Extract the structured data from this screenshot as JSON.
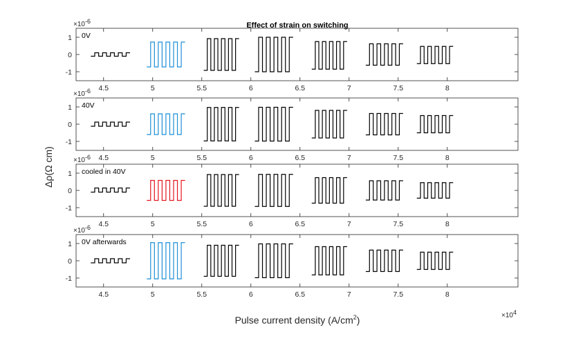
{
  "chart_data": {
    "type": "line",
    "title": "Effect of strain on switching",
    "xlabel": "Pulse current density (A/cm",
    "xlabel_sup": "2",
    "xlabel_close": ")",
    "ylabel": "Δρ(Ω cm)",
    "x_multiplier": "×10",
    "x_multiplier_exp": "4",
    "y_multiplier": "×10",
    "y_multiplier_exp": "-6",
    "xlim": [
      4.22,
      8.72
    ],
    "ylim": [
      -1.2,
      1.2
    ],
    "x_ticks": [
      "4.5",
      "5",
      "5.5",
      "6",
      "6.5",
      "7",
      "7.5",
      "8"
    ],
    "x_tick_values": [
      4.5,
      5.0,
      5.5,
      6.0,
      6.5,
      7.0,
      7.5,
      8.0
    ],
    "y_ticks": [
      "-1",
      "0",
      "1"
    ],
    "y_tick_values": [
      -1,
      0,
      1
    ],
    "colors": {
      "black": "#000000",
      "blue": "#1b8fd6",
      "red": "#e6141e",
      "axis": "#262626"
    },
    "panels": [
      {
        "label": "0V",
        "segments": [
          {
            "start": 4.37,
            "end": 4.77,
            "amp": 0.1,
            "offset": 0.0,
            "cycles": 5,
            "color": "black"
          },
          {
            "start": 4.94,
            "end": 5.33,
            "amp": 0.72,
            "offset": 0.0,
            "cycles": 5,
            "color": "blue"
          },
          {
            "start": 5.52,
            "end": 5.88,
            "amp": 0.92,
            "offset": 0.0,
            "cycles": 5,
            "color": "black"
          },
          {
            "start": 6.04,
            "end": 6.43,
            "amp": 1.0,
            "offset": 0.0,
            "cycles": 5,
            "color": "black"
          },
          {
            "start": 6.62,
            "end": 6.98,
            "amp": 0.8,
            "offset": -0.05,
            "cycles": 5,
            "color": "black"
          },
          {
            "start": 7.17,
            "end": 7.55,
            "amp": 0.62,
            "offset": 0.0,
            "cycles": 5,
            "color": "black"
          },
          {
            "start": 7.69,
            "end": 8.06,
            "amp": 0.5,
            "offset": -0.03,
            "cycles": 5,
            "color": "black"
          }
        ]
      },
      {
        "label": "40V",
        "segments": [
          {
            "start": 4.37,
            "end": 4.77,
            "amp": 0.12,
            "offset": 0.0,
            "cycles": 5,
            "color": "black"
          },
          {
            "start": 4.94,
            "end": 5.33,
            "amp": 0.6,
            "offset": 0.0,
            "cycles": 5,
            "color": "blue"
          },
          {
            "start": 5.52,
            "end": 5.88,
            "amp": 0.97,
            "offset": 0.0,
            "cycles": 5,
            "color": "black"
          },
          {
            "start": 6.04,
            "end": 6.43,
            "amp": 0.98,
            "offset": 0.0,
            "cycles": 5,
            "color": "black"
          },
          {
            "start": 6.62,
            "end": 6.98,
            "amp": 0.8,
            "offset": 0.0,
            "cycles": 5,
            "color": "black"
          },
          {
            "start": 7.17,
            "end": 7.55,
            "amp": 0.62,
            "offset": 0.0,
            "cycles": 5,
            "color": "black"
          },
          {
            "start": 7.69,
            "end": 8.06,
            "amp": 0.5,
            "offset": 0.0,
            "cycles": 5,
            "color": "black"
          }
        ]
      },
      {
        "label": "cooled in 40V",
        "segments": [
          {
            "start": 4.37,
            "end": 4.77,
            "amp": 0.12,
            "offset": 0.02,
            "cycles": 5,
            "color": "black"
          },
          {
            "start": 4.94,
            "end": 5.33,
            "amp": 0.58,
            "offset": 0.0,
            "cycles": 5,
            "color": "red"
          },
          {
            "start": 5.52,
            "end": 5.88,
            "amp": 0.92,
            "offset": 0.0,
            "cycles": 5,
            "color": "black"
          },
          {
            "start": 6.04,
            "end": 6.43,
            "amp": 0.93,
            "offset": 0.0,
            "cycles": 5,
            "color": "black"
          },
          {
            "start": 6.62,
            "end": 6.98,
            "amp": 0.74,
            "offset": 0.0,
            "cycles": 5,
            "color": "black"
          },
          {
            "start": 7.17,
            "end": 7.55,
            "amp": 0.56,
            "offset": 0.0,
            "cycles": 5,
            "color": "black"
          },
          {
            "start": 7.69,
            "end": 8.06,
            "amp": 0.45,
            "offset": 0.0,
            "cycles": 5,
            "color": "black"
          }
        ]
      },
      {
        "label": "0V afterwards",
        "segments": [
          {
            "start": 4.37,
            "end": 4.77,
            "amp": 0.12,
            "offset": 0.0,
            "cycles": 5,
            "color": "black"
          },
          {
            "start": 4.94,
            "end": 5.33,
            "amp": 1.05,
            "offset": 0.0,
            "cycles": 5,
            "color": "blue"
          },
          {
            "start": 5.52,
            "end": 5.88,
            "amp": 0.9,
            "offset": 0.0,
            "cycles": 5,
            "color": "black"
          },
          {
            "start": 6.04,
            "end": 6.43,
            "amp": 0.98,
            "offset": 0.0,
            "cycles": 5,
            "color": "black"
          },
          {
            "start": 6.62,
            "end": 6.98,
            "amp": 0.82,
            "offset": 0.0,
            "cycles": 5,
            "color": "black"
          },
          {
            "start": 7.17,
            "end": 7.55,
            "amp": 0.62,
            "offset": 0.0,
            "cycles": 5,
            "color": "black"
          },
          {
            "start": 7.69,
            "end": 8.06,
            "amp": 0.5,
            "offset": 0.0,
            "cycles": 5,
            "color": "black"
          }
        ]
      }
    ]
  }
}
